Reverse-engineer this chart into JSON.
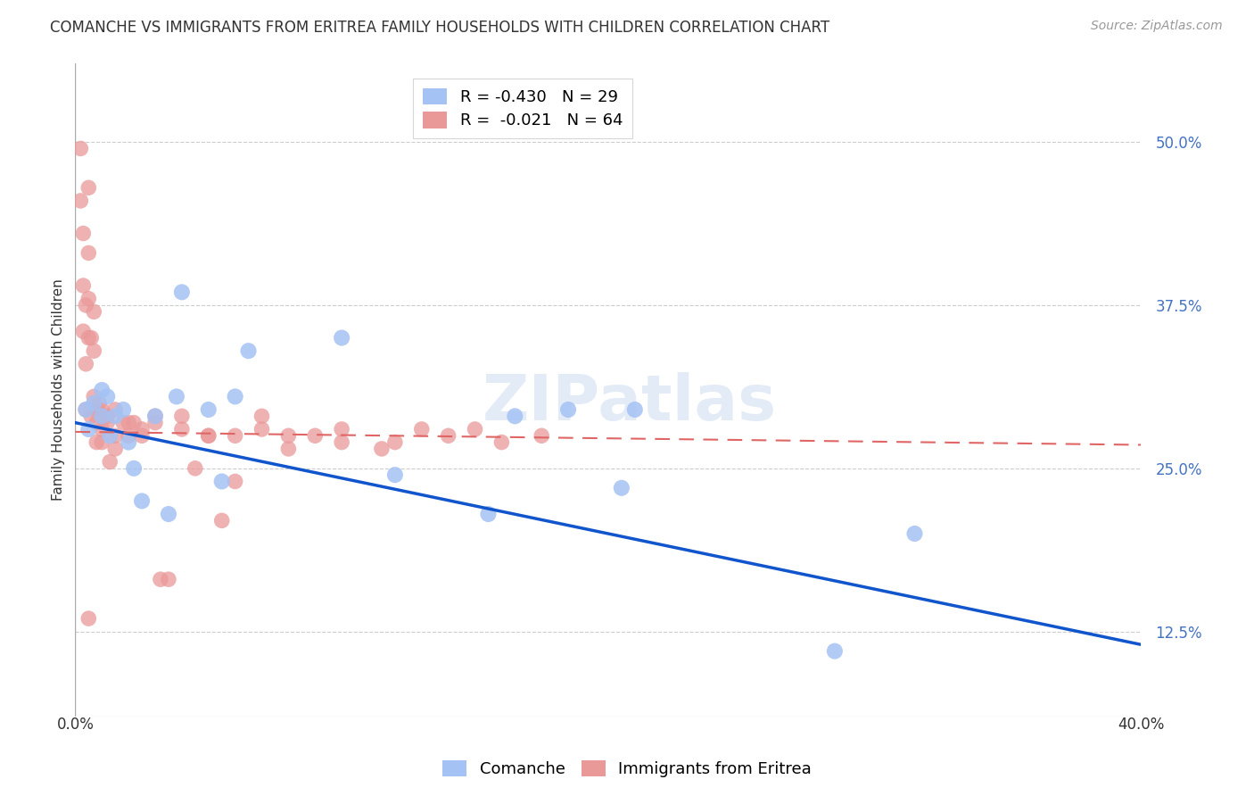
{
  "title": "COMANCHE VS IMMIGRANTS FROM ERITREA FAMILY HOUSEHOLDS WITH CHILDREN CORRELATION CHART",
  "source": "Source: ZipAtlas.com",
  "ylabel": "Family Households with Children",
  "ytick_labels": [
    "50.0%",
    "37.5%",
    "25.0%",
    "12.5%"
  ],
  "ytick_values": [
    0.5,
    0.375,
    0.25,
    0.125
  ],
  "legend_comanche": "R = -0.430   N = 29",
  "legend_eritrea": "R =  -0.021   N = 64",
  "comanche_color": "#a4c2f4",
  "eritrea_color": "#ea9999",
  "trend_comanche_color": "#1155cc",
  "trend_eritrea_color": "#e06666",
  "background_color": "#ffffff",
  "grid_color": "#cccccc",
  "xlim": [
    0.0,
    0.4
  ],
  "ylim": [
    0.06,
    0.56
  ],
  "trend_comanche_x0": 0.0,
  "trend_comanche_y0": 0.285,
  "trend_comanche_x1": 0.4,
  "trend_comanche_y1": 0.115,
  "trend_eritrea_x0": 0.0,
  "trend_eritrea_y0": 0.278,
  "trend_eritrea_x1": 0.4,
  "trend_eritrea_y1": 0.268,
  "comanche_x": [
    0.004,
    0.005,
    0.007,
    0.01,
    0.01,
    0.012,
    0.013,
    0.015,
    0.018,
    0.02,
    0.022,
    0.025,
    0.03,
    0.035,
    0.038,
    0.04,
    0.05,
    0.055,
    0.06,
    0.065,
    0.1,
    0.12,
    0.155,
    0.165,
    0.185,
    0.205,
    0.21,
    0.285,
    0.315
  ],
  "comanche_y": [
    0.295,
    0.28,
    0.3,
    0.31,
    0.29,
    0.305,
    0.275,
    0.29,
    0.295,
    0.27,
    0.25,
    0.225,
    0.29,
    0.215,
    0.305,
    0.385,
    0.295,
    0.24,
    0.305,
    0.34,
    0.35,
    0.245,
    0.215,
    0.29,
    0.295,
    0.235,
    0.295,
    0.11,
    0.2
  ],
  "eritrea_x": [
    0.002,
    0.002,
    0.003,
    0.003,
    0.004,
    0.004,
    0.004,
    0.005,
    0.005,
    0.005,
    0.006,
    0.006,
    0.007,
    0.007,
    0.008,
    0.008,
    0.009,
    0.01,
    0.01,
    0.01,
    0.012,
    0.013,
    0.015,
    0.015,
    0.018,
    0.02,
    0.022,
    0.025,
    0.03,
    0.032,
    0.035,
    0.04,
    0.045,
    0.05,
    0.055,
    0.06,
    0.07,
    0.08,
    0.09,
    0.1,
    0.115,
    0.13,
    0.15,
    0.175,
    0.003,
    0.005,
    0.007,
    0.008,
    0.01,
    0.012,
    0.015,
    0.02,
    0.025,
    0.03,
    0.04,
    0.05,
    0.06,
    0.07,
    0.08,
    0.1,
    0.12,
    0.14,
    0.16,
    0.005
  ],
  "eritrea_y": [
    0.495,
    0.455,
    0.43,
    0.39,
    0.375,
    0.33,
    0.295,
    0.465,
    0.415,
    0.38,
    0.35,
    0.29,
    0.37,
    0.305,
    0.295,
    0.27,
    0.3,
    0.295,
    0.28,
    0.27,
    0.29,
    0.255,
    0.295,
    0.265,
    0.285,
    0.275,
    0.285,
    0.28,
    0.29,
    0.165,
    0.165,
    0.28,
    0.25,
    0.275,
    0.21,
    0.24,
    0.29,
    0.265,
    0.275,
    0.27,
    0.265,
    0.28,
    0.28,
    0.275,
    0.355,
    0.35,
    0.34,
    0.285,
    0.29,
    0.285,
    0.275,
    0.285,
    0.275,
    0.285,
    0.29,
    0.275,
    0.275,
    0.28,
    0.275,
    0.28,
    0.27,
    0.275,
    0.27,
    0.135
  ],
  "title_fontsize": 12,
  "axis_label_fontsize": 11,
  "tick_fontsize": 12,
  "source_fontsize": 10,
  "legend_fontsize": 13
}
